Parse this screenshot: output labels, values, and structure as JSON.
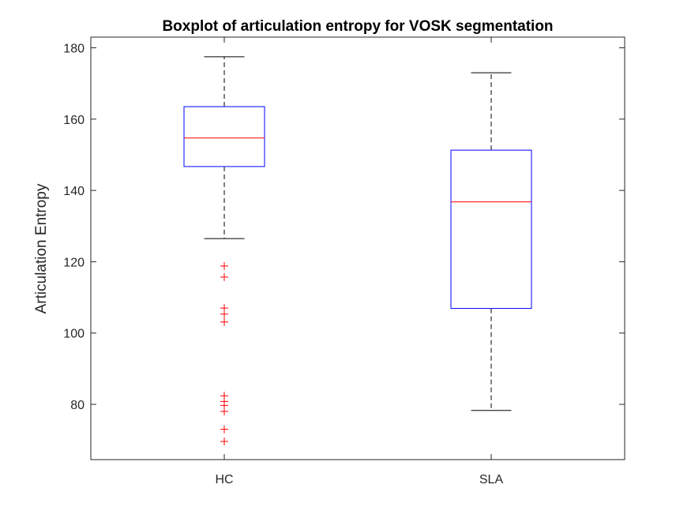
{
  "chart_data": {
    "type": "boxplot",
    "title": "Boxplot of articulation entropy for VOSK segmentation",
    "xlabel": "",
    "ylabel": "Articulation Entropy",
    "ylim": [
      64.5,
      183
    ],
    "yticks": [
      80,
      100,
      120,
      140,
      160,
      180
    ],
    "categories": [
      "HC",
      "SLA"
    ],
    "grid": false,
    "colors": {
      "box": "#0000ff",
      "median": "#ff0000",
      "whisker": "#000000",
      "outlier": "#ff0000",
      "axis": "#262626"
    },
    "boxes": [
      {
        "name": "HC",
        "whisker_low": 126.5,
        "q1": 146.7,
        "median": 154.7,
        "q3": 163.5,
        "whisker_high": 177.5,
        "outliers": [
          118.8,
          115.7,
          107.0,
          105.3,
          103.1,
          82.4,
          80.8,
          79.7,
          78.0,
          73.0,
          69.6
        ]
      },
      {
        "name": "SLA",
        "whisker_low": 78.3,
        "q1": 106.9,
        "median": 136.8,
        "q3": 151.3,
        "whisker_high": 173.0,
        "outliers": []
      }
    ]
  }
}
